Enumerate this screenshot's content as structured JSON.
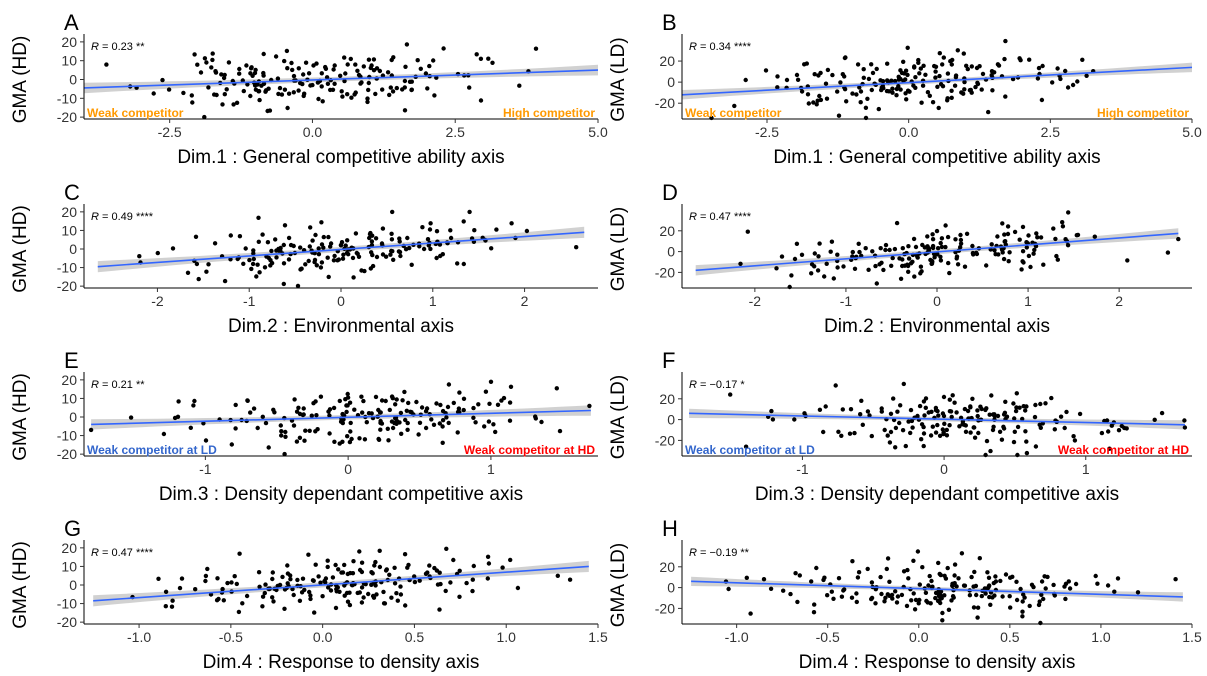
{
  "colors": {
    "fit_line": "#3366FF",
    "ci_band": "#999999",
    "annotation_orange": "#FF9900",
    "annotation_blue": "#3366CC",
    "annotation_red": "#FF0000"
  },
  "chart_data": [
    {
      "id": "A",
      "type": "scatter",
      "letter": "A",
      "ylabel": "GMA (HD)",
      "xlabel": "Dim.1 : General competitive ability axis",
      "xlim": [
        -4.0,
        5.0
      ],
      "ylim": [
        -21,
        21
      ],
      "xticks": [
        -2.5,
        0.0,
        2.5,
        5.0
      ],
      "xtick_labels": [
        "-2.5",
        "0.0",
        "2.5",
        "5.0"
      ],
      "yticks": [
        -20,
        -10,
        0,
        10,
        20
      ],
      "ytick_labels": [
        "-20",
        "-10",
        "0",
        "10",
        "20"
      ],
      "r_label": "R = 0.23 **",
      "r_value": 0.23,
      "r_signif": "**",
      "fit": {
        "x": [
          -4.0,
          5.0
        ],
        "y": [
          -4.5,
          5.0
        ],
        "ci_halfwidth": 2.8
      },
      "annotations": [
        {
          "text": "Weak competitor",
          "color": "#FF9900",
          "side": "left"
        },
        {
          "text": "High competitor",
          "color": "#FF9900",
          "side": "right"
        }
      ],
      "n_points": 190,
      "x_mean": 0.0,
      "x_sd": 1.35,
      "y_sd": 7.0,
      "seed": 11
    },
    {
      "id": "B",
      "type": "scatter",
      "letter": "B",
      "ylabel": "GMA (LD)",
      "xlabel": "Dim.1 : General competitive ability axis",
      "xlim": [
        -4.0,
        5.0
      ],
      "ylim": [
        -35,
        40
      ],
      "xticks": [
        -2.5,
        0.0,
        2.5,
        5.0
      ],
      "xtick_labels": [
        "-2.5",
        "0.0",
        "2.5",
        "5.0"
      ],
      "yticks": [
        -20,
        0,
        20
      ],
      "ytick_labels": [
        "-20",
        "0",
        "20"
      ],
      "r_label": "R = 0.34 ****",
      "r_value": 0.34,
      "r_signif": "****",
      "fit": {
        "x": [
          -4.0,
          5.0
        ],
        "y": [
          -12.0,
          14.0
        ],
        "ci_halfwidth": 4.5
      },
      "annotations": [
        {
          "text": "Weak competitor",
          "color": "#FF9900",
          "side": "left"
        },
        {
          "text": "High competitor",
          "color": "#FF9900",
          "side": "right"
        }
      ],
      "n_points": 190,
      "x_mean": 0.0,
      "x_sd": 1.35,
      "y_sd": 13.0,
      "seed": 23
    },
    {
      "id": "C",
      "type": "scatter",
      "letter": "C",
      "ylabel": "GMA (HD)",
      "xlabel": "Dim.2 : Environmental axis",
      "xlim": [
        -2.8,
        2.8
      ],
      "ylim": [
        -21,
        21
      ],
      "xticks": [
        -2,
        -1,
        0,
        1,
        2
      ],
      "xtick_labels": [
        "-2",
        "-1",
        "0",
        "1",
        "2"
      ],
      "yticks": [
        -20,
        -10,
        0,
        10,
        20
      ],
      "ytick_labels": [
        "-20",
        "-10",
        "0",
        "10",
        "20"
      ],
      "r_label": "R = 0.49 ****",
      "r_value": 0.49,
      "r_signif": "****",
      "fit": {
        "x": [
          -2.65,
          2.65
        ],
        "y": [
          -9.5,
          9.0
        ],
        "ci_halfwidth": 3.0
      },
      "annotations": [],
      "n_points": 190,
      "x_mean": 0.1,
      "x_sd": 0.85,
      "y_sd": 6.5,
      "seed": 37
    },
    {
      "id": "D",
      "type": "scatter",
      "letter": "D",
      "ylabel": "GMA (LD)",
      "xlabel": "Dim.2 : Environmental axis",
      "xlim": [
        -2.8,
        2.8
      ],
      "ylim": [
        -35,
        40
      ],
      "xticks": [
        -2,
        -1,
        0,
        1,
        2
      ],
      "xtick_labels": [
        "-2",
        "-1",
        "0",
        "1",
        "2"
      ],
      "yticks": [
        -20,
        0,
        20
      ],
      "ytick_labels": [
        "-20",
        "0",
        "20"
      ],
      "r_label": "R = 0.47 ****",
      "r_value": 0.47,
      "r_signif": "****",
      "fit": {
        "x": [
          -2.65,
          2.65
        ],
        "y": [
          -18.0,
          17.5
        ],
        "ci_halfwidth": 5.0
      },
      "annotations": [],
      "n_points": 190,
      "x_mean": 0.1,
      "x_sd": 0.85,
      "y_sd": 12.0,
      "seed": 41
    },
    {
      "id": "E",
      "type": "scatter",
      "letter": "E",
      "ylabel": "GMA (HD)",
      "xlabel": "Dim.3 : Density dependant competitive axis",
      "xlim": [
        -1.85,
        1.75
      ],
      "ylim": [
        -21,
        21
      ],
      "xticks": [
        -1,
        0,
        1
      ],
      "xtick_labels": [
        "-1",
        "0",
        "1"
      ],
      "yticks": [
        -20,
        -10,
        0,
        10,
        20
      ],
      "ytick_labels": [
        "-20",
        "-10",
        "0",
        "10",
        "20"
      ],
      "r_label": "R = 0.21 **",
      "r_value": 0.21,
      "r_signif": "**",
      "fit": {
        "x": [
          -1.8,
          1.7
        ],
        "y": [
          -4.0,
          3.5
        ],
        "ci_halfwidth": 2.8
      },
      "annotations": [
        {
          "text": "Weak competitor at LD",
          "color": "#3366CC",
          "side": "left"
        },
        {
          "text": "Weak competitor at HD",
          "color": "#FF0000",
          "side": "right"
        }
      ],
      "n_points": 190,
      "x_mean": 0.1,
      "x_sd": 0.6,
      "y_sd": 7.0,
      "seed": 53
    },
    {
      "id": "F",
      "type": "scatter",
      "letter": "F",
      "ylabel": "GMA (LD)",
      "xlabel": "Dim.3 : Density dependant competitive axis",
      "xlim": [
        -1.85,
        1.75
      ],
      "ylim": [
        -35,
        40
      ],
      "xticks": [
        -1,
        0,
        1
      ],
      "xtick_labels": [
        "-1",
        "0",
        "1"
      ],
      "yticks": [
        -20,
        0,
        20
      ],
      "ytick_labels": [
        "-20",
        "0",
        "20"
      ],
      "r_label": "R = −0.17 *",
      "r_value": -0.17,
      "r_signif": "*",
      "fit": {
        "x": [
          -1.8,
          1.7
        ],
        "y": [
          6.0,
          -5.0
        ],
        "ci_halfwidth": 4.5
      },
      "annotations": [
        {
          "text": "Weak competitor at LD",
          "color": "#3366CC",
          "side": "left"
        },
        {
          "text": "Weak competitor at HD",
          "color": "#FF0000",
          "side": "right"
        }
      ],
      "n_points": 190,
      "x_mean": 0.1,
      "x_sd": 0.6,
      "y_sd": 13.0,
      "seed": 67
    },
    {
      "id": "G",
      "type": "scatter",
      "letter": "G",
      "ylabel": "GMA (HD)",
      "xlabel": "Dim.4 : Response to density axis",
      "xlim": [
        -1.3,
        1.5
      ],
      "ylim": [
        -21,
        21
      ],
      "xticks": [
        -1.0,
        -0.5,
        0.0,
        0.5,
        1.0,
        1.5
      ],
      "xtick_labels": [
        "-1.0",
        "-0.5",
        "0.0",
        "0.5",
        "1.0",
        "1.5"
      ],
      "yticks": [
        -20,
        -10,
        0,
        10,
        20
      ],
      "ytick_labels": [
        "-20",
        "-10",
        "0",
        "10",
        "20"
      ],
      "r_label": "R = 0.47 ****",
      "r_value": 0.47,
      "r_signif": "****",
      "fit": {
        "x": [
          -1.25,
          1.45
        ],
        "y": [
          -8.5,
          10.0
        ],
        "ci_halfwidth": 3.0
      },
      "annotations": [],
      "n_points": 190,
      "x_mean": 0.1,
      "x_sd": 0.45,
      "y_sd": 6.5,
      "seed": 79
    },
    {
      "id": "H",
      "type": "scatter",
      "letter": "H",
      "ylabel": "GMA (LD)",
      "xlabel": "Dim.4 : Response to density axis",
      "xlim": [
        -1.3,
        1.5
      ],
      "ylim": [
        -35,
        40
      ],
      "xticks": [
        -1.0,
        -0.5,
        0.0,
        0.5,
        1.0,
        1.5
      ],
      "xtick_labels": [
        "-1.0",
        "-0.5",
        "0.0",
        "0.5",
        "1.0",
        "1.5"
      ],
      "yticks": [
        -20,
        0,
        20
      ],
      "ytick_labels": [
        "-20",
        "0",
        "20"
      ],
      "r_label": "R = −0.19 **",
      "r_value": -0.19,
      "r_signif": "**",
      "fit": {
        "x": [
          -1.25,
          1.45
        ],
        "y": [
          6.0,
          -9.0
        ],
        "ci_halfwidth": 4.5
      },
      "annotations": [],
      "n_points": 190,
      "x_mean": 0.1,
      "x_sd": 0.45,
      "y_sd": 13.0,
      "seed": 97
    }
  ]
}
